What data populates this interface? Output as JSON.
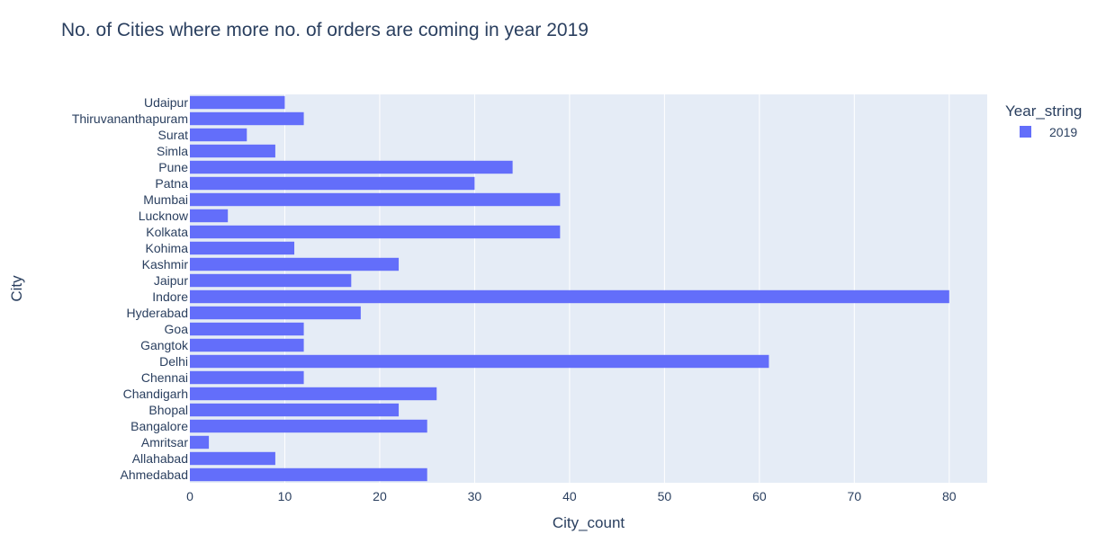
{
  "chart_data": {
    "type": "bar",
    "orientation": "horizontal",
    "title": "No. of Cities where more no. of orders are coming in year 2019",
    "xlabel": "City_count",
    "ylabel": "City",
    "xlim": [
      0,
      84
    ],
    "xticks": [
      0,
      10,
      20,
      30,
      40,
      50,
      60,
      70,
      80
    ],
    "grid": true,
    "legend": {
      "title": "Year_string",
      "placement": "top-right"
    },
    "categories": [
      "Ahmedabad",
      "Allahabad",
      "Amritsar",
      "Bangalore",
      "Bhopal",
      "Chandigarh",
      "Chennai",
      "Delhi",
      "Gangtok",
      "Goa",
      "Hyderabad",
      "Indore",
      "Jaipur",
      "Kashmir",
      "Kohima",
      "Kolkata",
      "Lucknow",
      "Mumbai",
      "Patna",
      "Pune",
      "Simla",
      "Surat",
      "Thiruvananthapuram",
      "Udaipur"
    ],
    "series": [
      {
        "name": "2019",
        "color": "#636efa",
        "values": [
          25,
          9,
          2,
          25,
          22,
          26,
          12,
          61,
          12,
          12,
          18,
          80,
          17,
          22,
          11,
          39,
          4,
          39,
          30,
          34,
          9,
          6,
          12,
          10
        ]
      }
    ],
    "colors": {
      "plot_bg": "#e5ecf6",
      "grid": "#ffffff",
      "text": "#2a3f5f"
    }
  }
}
